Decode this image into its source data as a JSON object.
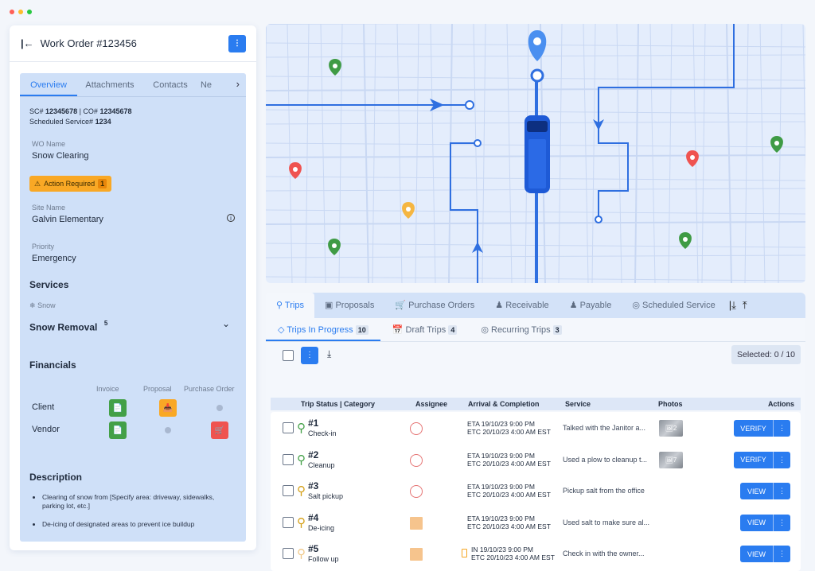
{
  "colors": {
    "accent": "#2a7cf0",
    "panel": "#cfe0f8",
    "warning": "#f9a825",
    "success": "#43a047",
    "danger": "#ef5350",
    "route": "#2f6fe0"
  },
  "workorder": {
    "title": "Work Order #123456",
    "tabs": [
      "Overview",
      "Attachments",
      "Contacts",
      "Ne"
    ],
    "sc_label": "SC#",
    "sc": "12345678",
    "co_label": "| CO#",
    "co": "12345678",
    "ss_label": "Scheduled Service#",
    "ss": "1234",
    "wo_name_label": "WO Name",
    "wo_name": "Snow Clearing",
    "action_required": "Action Required",
    "action_count": "1",
    "site_label": "Site Name",
    "site": "Galvin Elementary",
    "priority_label": "Priority",
    "priority": "Emergency",
    "services_title": "Services",
    "service_category": "Snow",
    "service_name": "Snow Removal",
    "service_count": "5",
    "financials_title": "Financials",
    "fin_columns": [
      "Invoice",
      "Proposal",
      "Purchase Order"
    ],
    "fin_rows": [
      {
        "label": "Client",
        "invoice": "success",
        "proposal": "warning",
        "purchase_order": "none"
      },
      {
        "label": "Vendor",
        "invoice": "success",
        "proposal": "none",
        "purchase_order": "danger"
      }
    ],
    "description_title": "Description",
    "description": [
      "Clearing of snow from [Specify area: driveway, sidewalks, parking lot, etc.]",
      "De-icing of designated areas to prevent ice buildup"
    ]
  },
  "map": {
    "pins": [
      "green",
      "green",
      "green",
      "green",
      "red",
      "red",
      "yellow"
    ],
    "vehicle": "truck-icon"
  },
  "bottom": {
    "tabs": [
      "Trips",
      "Proposals",
      "Purchase Orders",
      "Receivable",
      "Payable",
      "Scheduled Service"
    ],
    "subtabs": [
      {
        "label": "Trips In Progress",
        "count": "10"
      },
      {
        "label": "Draft Trips",
        "count": "4"
      },
      {
        "label": "Recurring Trips",
        "count": "3"
      }
    ],
    "selected": "Selected: 0 / 10",
    "columns": [
      "Trip Status | Category",
      "Assignee",
      "Arrival & Completion",
      "Service",
      "Photos",
      "Actions"
    ],
    "rows": [
      {
        "num": "#1",
        "category": "Check-in",
        "pin": "#43a047",
        "line1": "ETA 19/10/23 9:00 PM",
        "line2": "ETC 20/10/23 4:00 AM EST",
        "service": "Talked with the Janitor a...",
        "photos": "2",
        "action": "VERIFY"
      },
      {
        "num": "#2",
        "category": "Cleanup",
        "pin": "#43a047",
        "line1": "ETA 19/10/23 9:00 PM",
        "line2": "ETC 20/10/23 4:00 AM EST",
        "service": "Used a plow to cleanup t...",
        "photos": "7",
        "action": "VERIFY"
      },
      {
        "num": "#3",
        "category": "Salt pickup",
        "pin": "#d4a017",
        "line1": "ETA 19/10/23 9:00 PM",
        "line2": "ETC 20/10/23 4:00 AM EST",
        "service": "Pickup salt from the office",
        "photos": "",
        "action": "VIEW"
      },
      {
        "num": "#4",
        "category": "De-icing",
        "pin": "#d4a017",
        "line1": "ETA 19/10/23 9:00 PM",
        "line2": "ETC 20/10/23 4:00 AM EST",
        "service": "Used salt to make sure al...",
        "photos": "",
        "action": "VIEW"
      },
      {
        "num": "#5",
        "category": "Follow up",
        "pin": "#f0c98a",
        "line1": "IN 19/10/23 9:00 PM",
        "line2": "ETC 20/10/23 4:00 AM EST",
        "service": "Check in with the owner...",
        "photos": "",
        "action": "VIEW"
      }
    ]
  }
}
